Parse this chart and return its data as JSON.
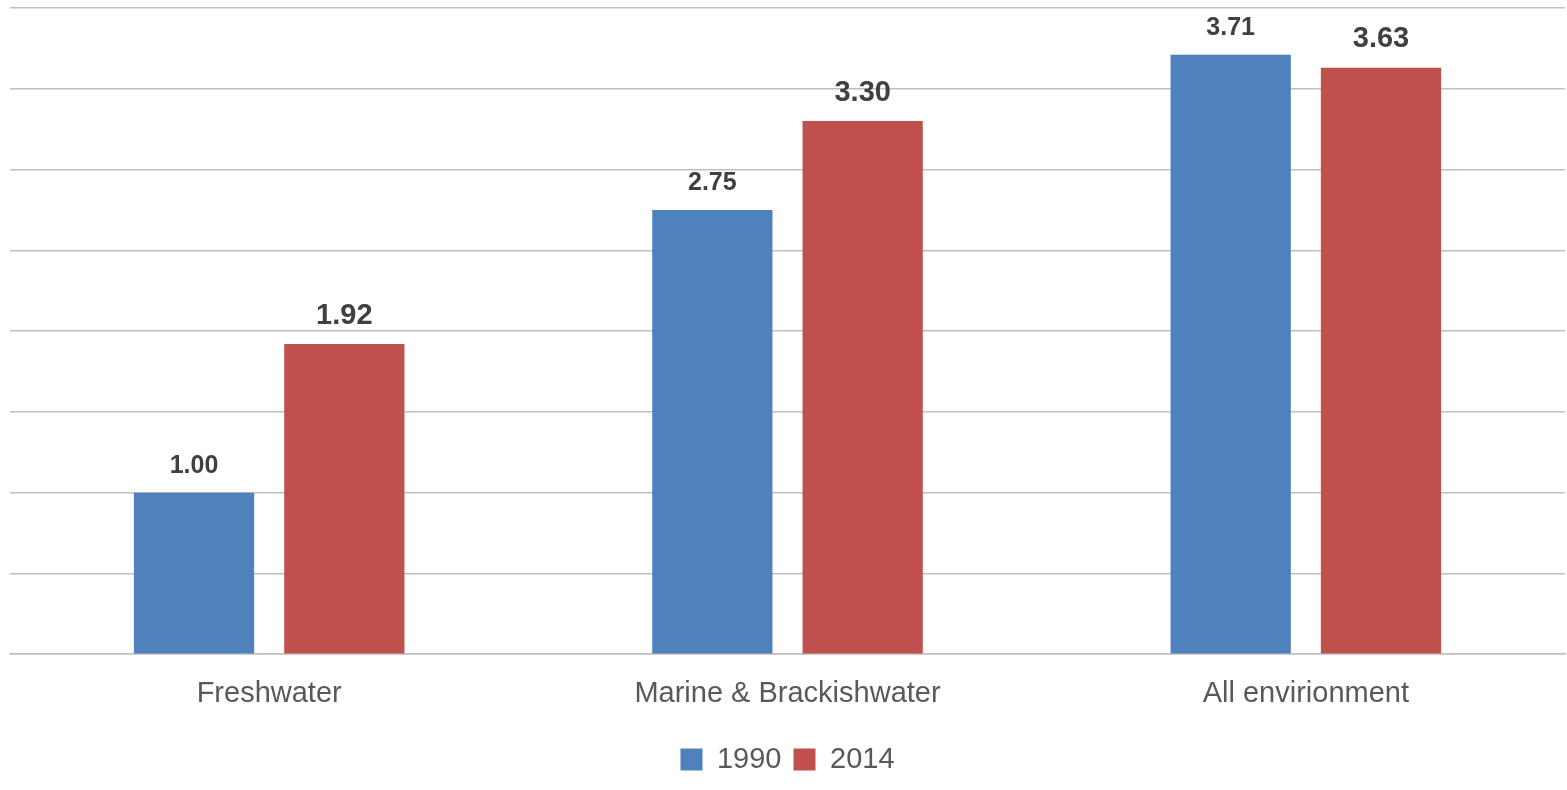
{
  "chart_data": {
    "type": "bar",
    "categories": [
      "Freshwater",
      "Marine & Brackishwater",
      "All envirionment"
    ],
    "series": [
      {
        "name": "1990",
        "color": "#4f81bd",
        "values": [
          1.0,
          2.75,
          3.71
        ],
        "value_labels": [
          "1.00",
          "2.75",
          "3.71"
        ]
      },
      {
        "name": "2014",
        "color": "#c0504d",
        "values": [
          1.92,
          3.3,
          3.63
        ],
        "value_labels": [
          "1.92",
          "3.30",
          "3.63"
        ]
      }
    ],
    "ylim": [
      0,
      4
    ],
    "yticks": [
      {
        "value": 0,
        "label": null
      },
      {
        "value": 0.5,
        "label": null
      },
      {
        "value": 1,
        "label": null
      },
      {
        "value": 1.5,
        "label": null
      },
      {
        "value": 2,
        "label": null
      },
      {
        "value": 2.5,
        "label": null
      },
      {
        "value": 3,
        "label": null
      },
      {
        "value": 3.5,
        "label": null
      },
      {
        "value": 4,
        "label": null
      }
    ],
    "tick_labels": "x",
    "grid": "y",
    "legend": "bottom"
  }
}
